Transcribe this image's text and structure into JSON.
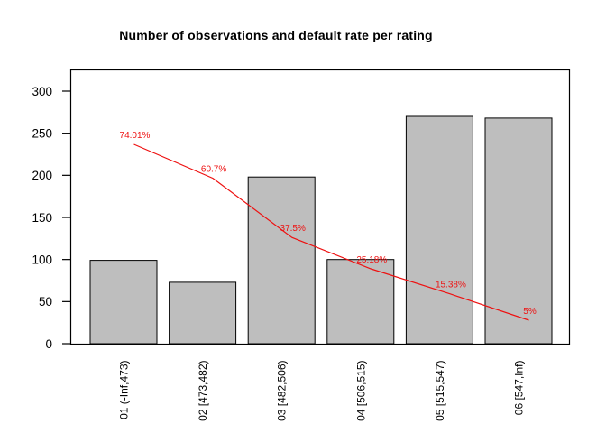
{
  "header": {
    "title": "Number of observations and default rate per rating"
  },
  "chart_data": {
    "type": "bar",
    "title": "Number of observations and default rate per rating",
    "categories": [
      "01 (-Inf,473)",
      "02 [473,482)",
      "03 [482,506)",
      "04 [506,515)",
      "05 [515,547)",
      "06 [547,Inf)"
    ],
    "series": [
      {
        "name": "number-of-observations",
        "type": "bar",
        "values": [
          99,
          73,
          198,
          100,
          270,
          268
        ]
      },
      {
        "name": "default-rate",
        "type": "line",
        "unit": "%",
        "values": [
          74.01,
          60.7,
          37.5,
          25.18,
          15.38,
          5
        ],
        "point_labels": [
          "74.01%",
          "60.7%",
          "37.5%",
          "25.18%",
          "15.38%",
          "5%"
        ]
      }
    ],
    "xlabel": "",
    "ylabel": "",
    "y_ticks": [
      0,
      50,
      100,
      150,
      200,
      250,
      300
    ],
    "ylim": [
      0,
      325
    ],
    "grid": false,
    "legend_position": "none",
    "colors": {
      "bar_fill": "#bebebe",
      "bar_border": "#000000",
      "line": "#ee1111",
      "point_label": "#ee1111",
      "axis": "#000000",
      "background": "#ffffff"
    }
  }
}
